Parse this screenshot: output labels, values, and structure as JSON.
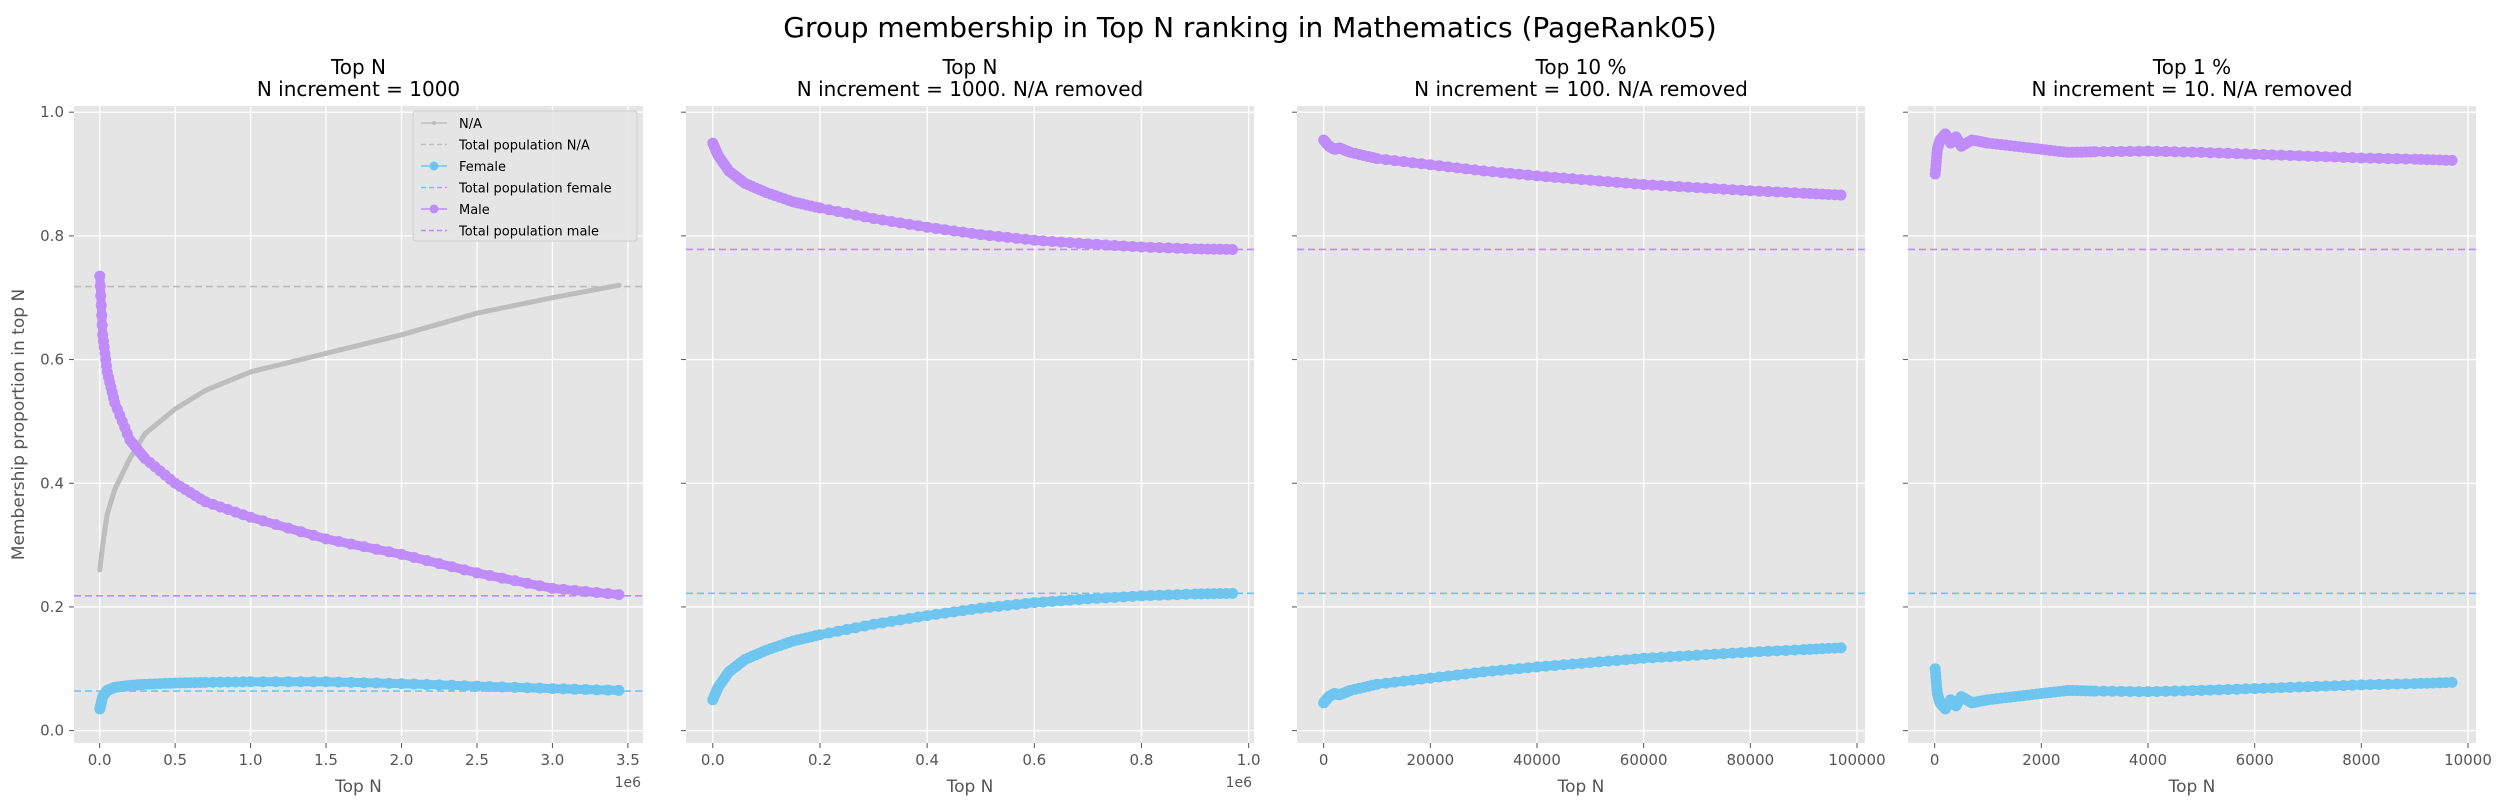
{
  "suptitle": "Group membership in Top N ranking in Mathematics (PageRank05)",
  "colors": {
    "na": "#bdbdbd",
    "female": "#6ec6f0",
    "male": "#bf8cf9",
    "panel_bg": "#e5e5e5",
    "grid": "#ffffff"
  },
  "chart_data": [
    {
      "type": "line",
      "title_line1": "Top N",
      "title_line2": "N increment = 1000",
      "xlabel": "Top N",
      "ylabel": "Membership proportion in top N",
      "x_offset_label": "1e6",
      "xlim": [
        -0.17,
        3.6
      ],
      "ylim": [
        -0.02,
        1.01
      ],
      "xticks": [
        0.0,
        0.5,
        1.0,
        1.5,
        2.0,
        2.5,
        3.0,
        3.5
      ],
      "xtick_labels": [
        "0.0",
        "0.5",
        "1.0",
        "1.5",
        "2.0",
        "2.5",
        "3.0",
        "3.5"
      ],
      "yticks": [
        0.0,
        0.2,
        0.4,
        0.6,
        0.8,
        1.0
      ],
      "ytick_labels": [
        "0.0",
        "0.2",
        "0.4",
        "0.6",
        "0.8",
        "1.0"
      ],
      "legend": {
        "position": "top-right",
        "entries": [
          "N/A",
          "Total population N/A",
          "Female",
          "Total population female",
          "Male",
          "Total population male"
        ]
      },
      "series": [
        {
          "key": "na",
          "name": "N/A",
          "x": [
            0.001,
            0.02,
            0.05,
            0.1,
            0.2,
            0.3,
            0.5,
            0.7,
            1.0,
            1.5,
            2.0,
            2.5,
            3.0,
            3.44
          ],
          "y": [
            0.26,
            0.3,
            0.35,
            0.39,
            0.44,
            0.48,
            0.52,
            0.55,
            0.58,
            0.61,
            0.64,
            0.675,
            0.7,
            0.72
          ]
        },
        {
          "key": "female",
          "name": "Female",
          "x": [
            0.001,
            0.02,
            0.05,
            0.1,
            0.2,
            0.3,
            0.5,
            0.7,
            1.0,
            1.5,
            2.0,
            2.5,
            3.0,
            3.44
          ],
          "y": [
            0.035,
            0.055,
            0.065,
            0.07,
            0.073,
            0.075,
            0.077,
            0.078,
            0.079,
            0.079,
            0.076,
            0.072,
            0.068,
            0.065
          ]
        },
        {
          "key": "male",
          "name": "Male",
          "x": [
            0.001,
            0.02,
            0.05,
            0.1,
            0.2,
            0.3,
            0.5,
            0.7,
            1.0,
            1.5,
            2.0,
            2.5,
            3.0,
            3.44
          ],
          "y": [
            0.735,
            0.64,
            0.58,
            0.53,
            0.47,
            0.44,
            0.4,
            0.37,
            0.345,
            0.31,
            0.285,
            0.255,
            0.23,
            0.22
          ]
        }
      ],
      "reference_lines": [
        {
          "key": "na",
          "name": "Total population N/A",
          "y": 0.718
        },
        {
          "key": "female",
          "name": "Total population female",
          "y": 0.064
        },
        {
          "key": "male",
          "name": "Total population male",
          "y": 0.218
        }
      ]
    },
    {
      "type": "line",
      "title_line1": "Top N",
      "title_line2": "N increment = 1000. N/A removed",
      "xlabel": "Top N",
      "x_offset_label": "1e6",
      "xlim": [
        -0.05,
        1.01
      ],
      "ylim": [
        -0.02,
        1.01
      ],
      "xticks": [
        0.0,
        0.2,
        0.4,
        0.6,
        0.8,
        1.0
      ],
      "xtick_labels": [
        "0.0",
        "0.2",
        "0.4",
        "0.6",
        "0.8",
        "1.0"
      ],
      "yticks": [
        0.0,
        0.2,
        0.4,
        0.6,
        0.8,
        1.0
      ],
      "series": [
        {
          "key": "female",
          "name": "Female",
          "x": [
            0.0,
            0.01,
            0.03,
            0.06,
            0.1,
            0.15,
            0.2,
            0.3,
            0.4,
            0.5,
            0.6,
            0.7,
            0.8,
            0.9,
            0.97
          ],
          "y": [
            0.05,
            0.07,
            0.095,
            0.115,
            0.13,
            0.145,
            0.155,
            0.172,
            0.186,
            0.198,
            0.207,
            0.213,
            0.218,
            0.221,
            0.222
          ]
        },
        {
          "key": "male",
          "name": "Male",
          "x": [
            0.0,
            0.01,
            0.03,
            0.06,
            0.1,
            0.15,
            0.2,
            0.3,
            0.4,
            0.5,
            0.6,
            0.7,
            0.8,
            0.9,
            0.97
          ],
          "y": [
            0.95,
            0.93,
            0.905,
            0.885,
            0.87,
            0.855,
            0.845,
            0.828,
            0.814,
            0.802,
            0.793,
            0.787,
            0.782,
            0.779,
            0.778
          ]
        }
      ],
      "reference_lines": [
        {
          "key": "female",
          "name": "Total population female",
          "y": 0.222
        },
        {
          "key": "male",
          "name": "Total population male",
          "y": 0.778
        }
      ]
    },
    {
      "type": "line",
      "title_line1": "Top 10 %",
      "title_line2": "N increment = 100. N/A removed",
      "xlabel": "Top N",
      "xlim": [
        -5000,
        101500
      ],
      "ylim": [
        -0.02,
        1.01
      ],
      "xticks": [
        0,
        20000,
        40000,
        60000,
        80000,
        100000
      ],
      "xtick_labels": [
        "0",
        "20000",
        "40000",
        "60000",
        "80000",
        "100000"
      ],
      "yticks": [
        0.0,
        0.2,
        0.4,
        0.6,
        0.8,
        1.0
      ],
      "series": [
        {
          "key": "female",
          "name": "Female",
          "x": [
            0,
            500,
            1000,
            2000,
            3000,
            5000,
            10000,
            20000,
            30000,
            40000,
            50000,
            60000,
            70000,
            80000,
            90000,
            97000
          ],
          "y": [
            0.045,
            0.05,
            0.055,
            0.06,
            0.058,
            0.065,
            0.075,
            0.085,
            0.095,
            0.103,
            0.11,
            0.117,
            0.122,
            0.127,
            0.131,
            0.134
          ]
        },
        {
          "key": "male",
          "name": "Male",
          "x": [
            0,
            500,
            1000,
            2000,
            3000,
            5000,
            10000,
            20000,
            30000,
            40000,
            50000,
            60000,
            70000,
            80000,
            90000,
            97000
          ],
          "y": [
            0.955,
            0.95,
            0.945,
            0.94,
            0.942,
            0.935,
            0.925,
            0.915,
            0.905,
            0.897,
            0.89,
            0.883,
            0.878,
            0.873,
            0.869,
            0.866
          ]
        }
      ],
      "reference_lines": [
        {
          "key": "female",
          "name": "Total population female",
          "y": 0.222
        },
        {
          "key": "male",
          "name": "Total population male",
          "y": 0.778
        }
      ]
    },
    {
      "type": "line",
      "title_line1": "Top 1 %",
      "title_line2": "N increment = 10. N/A removed",
      "xlabel": "Top N",
      "xlim": [
        -500,
        10150
      ],
      "ylim": [
        -0.02,
        1.01
      ],
      "xticks": [
        0,
        2000,
        4000,
        6000,
        8000,
        10000
      ],
      "xtick_labels": [
        "0",
        "2000",
        "4000",
        "6000",
        "8000",
        "10000"
      ],
      "yticks": [
        0.0,
        0.2,
        0.4,
        0.6,
        0.8,
        1.0
      ],
      "series": [
        {
          "key": "female",
          "name": "Female",
          "x": [
            10,
            50,
            100,
            200,
            300,
            400,
            500,
            700,
            1000,
            1500,
            2000,
            2500,
            3000,
            4000,
            5000,
            6000,
            7000,
            8000,
            9000,
            9700
          ],
          "y": [
            0.1,
            0.06,
            0.045,
            0.035,
            0.05,
            0.04,
            0.055,
            0.045,
            0.05,
            0.055,
            0.06,
            0.065,
            0.064,
            0.063,
            0.065,
            0.068,
            0.071,
            0.074,
            0.076,
            0.078
          ]
        },
        {
          "key": "male",
          "name": "Male",
          "x": [
            10,
            50,
            100,
            200,
            300,
            400,
            500,
            700,
            1000,
            1500,
            2000,
            2500,
            3000,
            4000,
            5000,
            6000,
            7000,
            8000,
            9000,
            9700
          ],
          "y": [
            0.9,
            0.94,
            0.955,
            0.965,
            0.95,
            0.96,
            0.945,
            0.955,
            0.95,
            0.945,
            0.94,
            0.935,
            0.936,
            0.937,
            0.935,
            0.932,
            0.929,
            0.926,
            0.924,
            0.922
          ]
        }
      ],
      "reference_lines": [
        {
          "key": "female",
          "name": "Total population female",
          "y": 0.222
        },
        {
          "key": "male",
          "name": "Total population male",
          "y": 0.778
        }
      ]
    }
  ]
}
